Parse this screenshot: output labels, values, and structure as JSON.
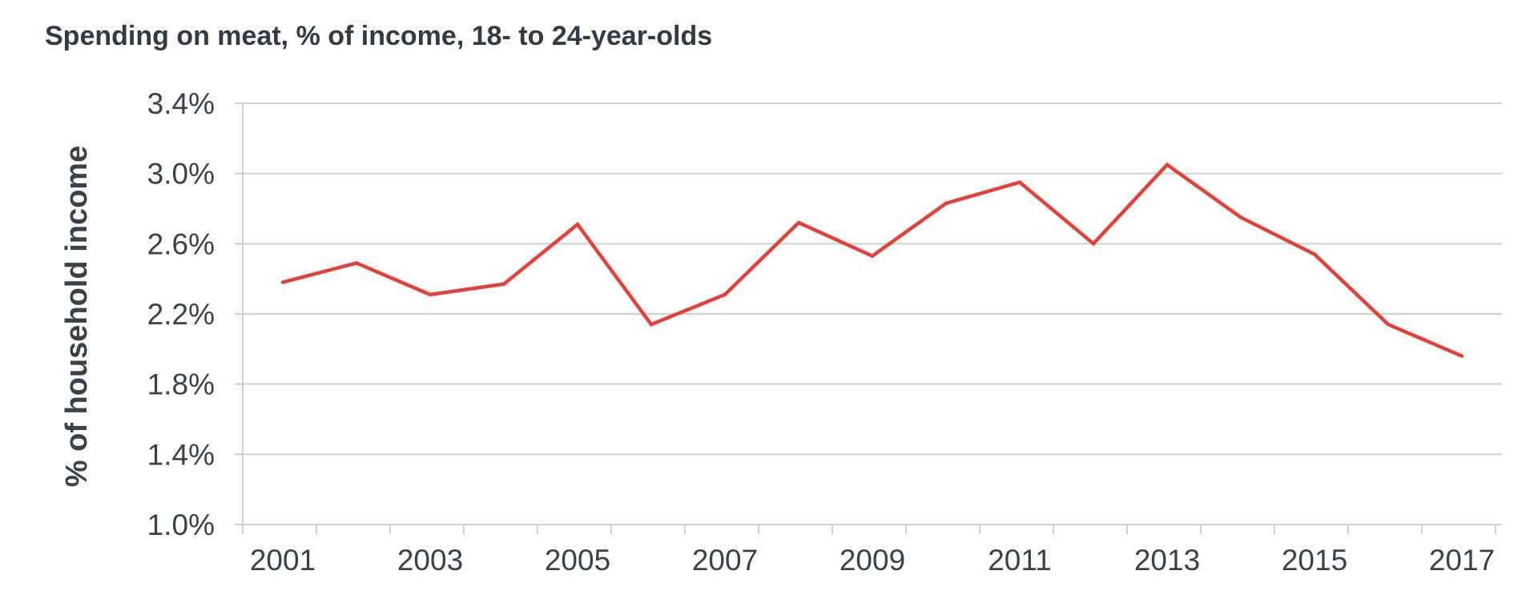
{
  "chart_data": {
    "type": "line",
    "title": "Spending on meat, % of income, 18- to 24-year-olds",
    "xlabel": "",
    "ylabel": "% of household income",
    "x": [
      2001,
      2002,
      2003,
      2004,
      2005,
      2006,
      2007,
      2008,
      2009,
      2010,
      2011,
      2012,
      2013,
      2014,
      2015,
      2016,
      2017
    ],
    "x_tick_labels": [
      "2001",
      "2003",
      "2005",
      "2007",
      "2009",
      "2011",
      "2013",
      "2015",
      "2017"
    ],
    "y_tick_labels": [
      "1.0%",
      "1.4%",
      "1.8%",
      "2.2%",
      "2.6%",
      "3.0%",
      "3.4%"
    ],
    "ylim": [
      1.0,
      3.4
    ],
    "xlim": [
      2001,
      2017
    ],
    "grid": "horizontal",
    "series": [
      {
        "color": "#e2413a",
        "values": [
          2.38,
          2.49,
          2.31,
          2.37,
          2.71,
          2.14,
          2.31,
          2.72,
          2.53,
          2.83,
          2.95,
          2.6,
          3.05,
          2.75,
          2.54,
          2.14,
          1.96
        ]
      }
    ],
    "colors": {
      "line": "#e2413a",
      "grid": "#c9d3cc",
      "axis": "#c9d3cc",
      "text": "#3b4247"
    }
  }
}
